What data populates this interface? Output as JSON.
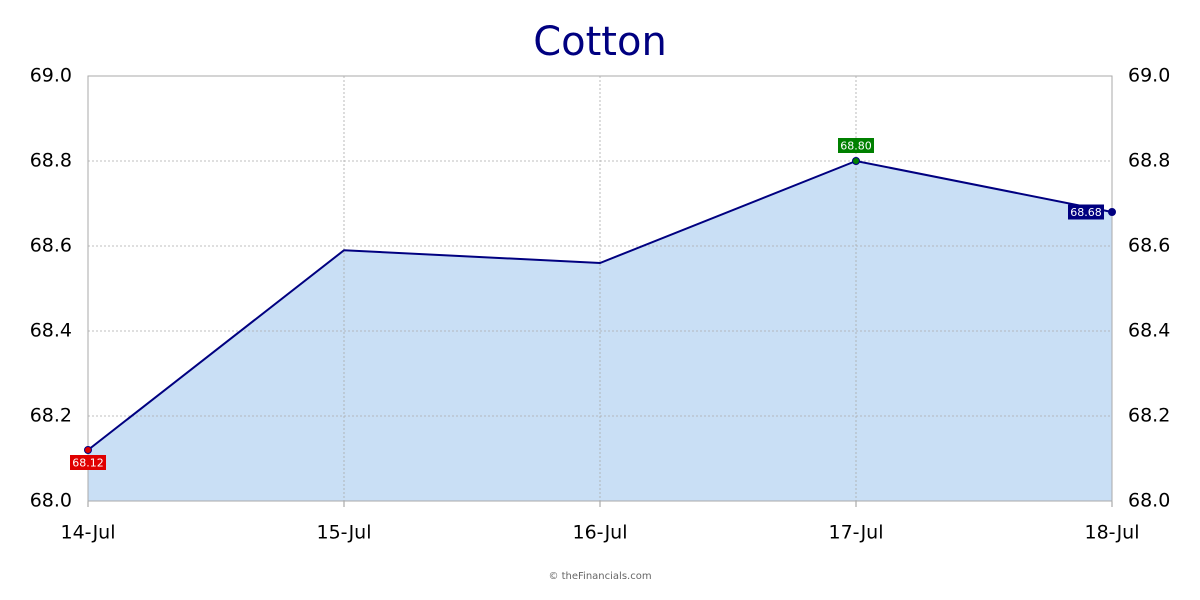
{
  "chart_data": {
    "type": "area",
    "title": "Cotton",
    "categories": [
      "14-Jul",
      "15-Jul",
      "16-Jul",
      "17-Jul",
      "18-Jul"
    ],
    "values": [
      68.12,
      68.59,
      68.56,
      68.8,
      68.68
    ],
    "value_labels": [
      "68.12",
      null,
      null,
      "68.80",
      "68.68"
    ],
    "label_colors": [
      "#e00000",
      null,
      null,
      "#008000",
      "#000080"
    ],
    "color": "#000080",
    "fill": "#c9dff5",
    "ylim": [
      68.0,
      69.0
    ],
    "yticks": [
      {
        "value": 68.0,
        "label": "68.0"
      },
      {
        "value": 68.2,
        "label": "68.2"
      },
      {
        "value": 68.4,
        "label": "68.4"
      },
      {
        "value": 68.6,
        "label": "68.6"
      },
      {
        "value": 68.8,
        "label": "68.8"
      },
      {
        "value": 69.0,
        "label": "69.0"
      }
    ],
    "grid": true,
    "source": "© theFinancials.com"
  }
}
